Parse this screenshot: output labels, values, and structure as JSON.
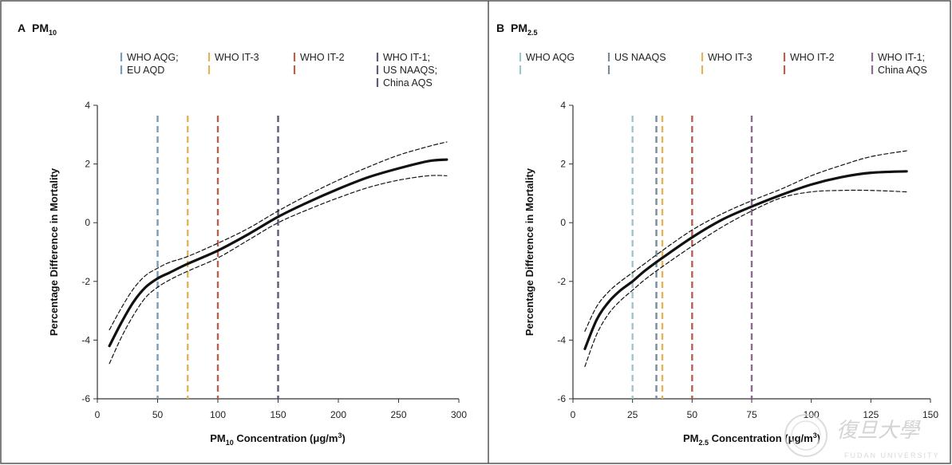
{
  "chart_data": [
    {
      "type": "line",
      "panel_letter": "A",
      "title_main": "PM",
      "title_sub": "10",
      "xlabel_main": "PM",
      "xlabel_sub": "10",
      "xlabel_rest": " Concentration (μg/m",
      "xlabel_sup": "3",
      "xlabel_end": ")",
      "ylabel": "Percentage Difference in Mortality",
      "xlim": [
        0,
        300
      ],
      "ylim": [
        -6,
        4
      ],
      "xticks": [
        0,
        50,
        100,
        150,
        200,
        250,
        300
      ],
      "yticks": [
        -6,
        -4,
        -2,
        0,
        2,
        4
      ],
      "grid": false,
      "legend_position": "top",
      "guidelines": [
        {
          "x": 50,
          "labels": [
            "WHO AQG;",
            "EU AQD"
          ],
          "color": "#7b9bb5"
        },
        {
          "x": 75,
          "labels": [
            "WHO IT-3"
          ],
          "color": "#e2b45a"
        },
        {
          "x": 100,
          "labels": [
            "WHO IT-2"
          ],
          "color": "#b5614f"
        },
        {
          "x": 150,
          "labels": [
            "WHO IT-1;",
            "US NAAQS;",
            "China AQS"
          ],
          "color": "#5e5a7a"
        }
      ],
      "series": [
        {
          "role": "estimate",
          "style": "solid",
          "x": [
            10,
            20,
            30,
            40,
            50,
            60,
            75,
            100,
            125,
            150,
            175,
            200,
            225,
            250,
            275,
            290
          ],
          "y": [
            -4.2,
            -3.4,
            -2.7,
            -2.2,
            -1.9,
            -1.7,
            -1.4,
            -0.95,
            -0.4,
            0.2,
            0.7,
            1.15,
            1.55,
            1.85,
            2.1,
            2.15
          ]
        },
        {
          "role": "upper_ci",
          "style": "dashed",
          "x": [
            10,
            20,
            30,
            40,
            50,
            60,
            75,
            100,
            125,
            150,
            175,
            200,
            225,
            250,
            275,
            290
          ],
          "y": [
            -3.65,
            -2.9,
            -2.25,
            -1.8,
            -1.55,
            -1.35,
            -1.15,
            -0.7,
            -0.2,
            0.4,
            0.95,
            1.45,
            1.9,
            2.3,
            2.6,
            2.75
          ]
        },
        {
          "role": "lower_ci",
          "style": "dashed",
          "x": [
            10,
            20,
            30,
            40,
            50,
            60,
            75,
            100,
            125,
            150,
            175,
            200,
            225,
            250,
            275,
            290
          ],
          "y": [
            -4.8,
            -3.9,
            -3.15,
            -2.55,
            -2.2,
            -1.95,
            -1.65,
            -1.2,
            -0.6,
            0.0,
            0.45,
            0.85,
            1.2,
            1.45,
            1.6,
            1.6
          ]
        }
      ]
    },
    {
      "type": "line",
      "panel_letter": "B",
      "title_main": "PM",
      "title_sub": "2.5",
      "xlabel_main": "PM",
      "xlabel_sub": "2.5",
      "xlabel_rest": " Concentration (μg/m",
      "xlabel_sup": "3",
      "xlabel_end": ")",
      "ylabel": "Percentage Difference in Mortality",
      "xlim": [
        0,
        150
      ],
      "ylim": [
        -6,
        4
      ],
      "xticks": [
        0,
        25,
        50,
        75,
        100,
        125,
        150
      ],
      "yticks": [
        -6,
        -4,
        -2,
        0,
        2,
        4
      ],
      "grid": false,
      "legend_position": "top",
      "guidelines": [
        {
          "x": 25,
          "labels": [
            "WHO AQG"
          ],
          "color": "#9fc4c8"
        },
        {
          "x": 35,
          "labels": [
            "US NAAQS"
          ],
          "color": "#7a8a99"
        },
        {
          "x": 37.5,
          "labels": [
            "WHO IT-3"
          ],
          "color": "#e2b45a"
        },
        {
          "x": 50,
          "labels": [
            "WHO IT-2"
          ],
          "color": "#b5614f"
        },
        {
          "x": 75,
          "labels": [
            "WHO IT-1;",
            "China AQS"
          ],
          "color": "#8a6a8e"
        }
      ],
      "series": [
        {
          "role": "estimate",
          "style": "solid",
          "x": [
            5,
            10,
            15,
            20,
            25,
            30,
            37.5,
            50,
            62.5,
            75,
            87.5,
            100,
            112.5,
            125,
            140
          ],
          "y": [
            -4.3,
            -3.3,
            -2.7,
            -2.3,
            -2.0,
            -1.65,
            -1.2,
            -0.5,
            0.1,
            0.55,
            0.95,
            1.3,
            1.55,
            1.7,
            1.75
          ]
        },
        {
          "role": "upper_ci",
          "style": "dashed",
          "x": [
            5,
            10,
            15,
            20,
            25,
            30,
            37.5,
            50,
            62.5,
            75,
            87.5,
            100,
            112.5,
            125,
            140
          ],
          "y": [
            -3.7,
            -2.85,
            -2.35,
            -2.0,
            -1.7,
            -1.4,
            -0.95,
            -0.25,
            0.3,
            0.75,
            1.15,
            1.6,
            1.95,
            2.25,
            2.45
          ]
        },
        {
          "role": "lower_ci",
          "style": "dashed",
          "x": [
            5,
            10,
            15,
            20,
            25,
            30,
            37.5,
            50,
            62.5,
            75,
            87.5,
            100,
            112.5,
            125,
            140
          ],
          "y": [
            -4.9,
            -3.8,
            -3.1,
            -2.65,
            -2.3,
            -1.95,
            -1.5,
            -0.8,
            -0.15,
            0.4,
            0.85,
            1.05,
            1.1,
            1.1,
            1.05
          ]
        }
      ]
    }
  ],
  "watermark": {
    "chinese": "復旦大學",
    "english": "FUDAN UNIVERSITY"
  },
  "colors": {
    "curve": "#111111",
    "axis": "#333333",
    "border": "#555555"
  }
}
